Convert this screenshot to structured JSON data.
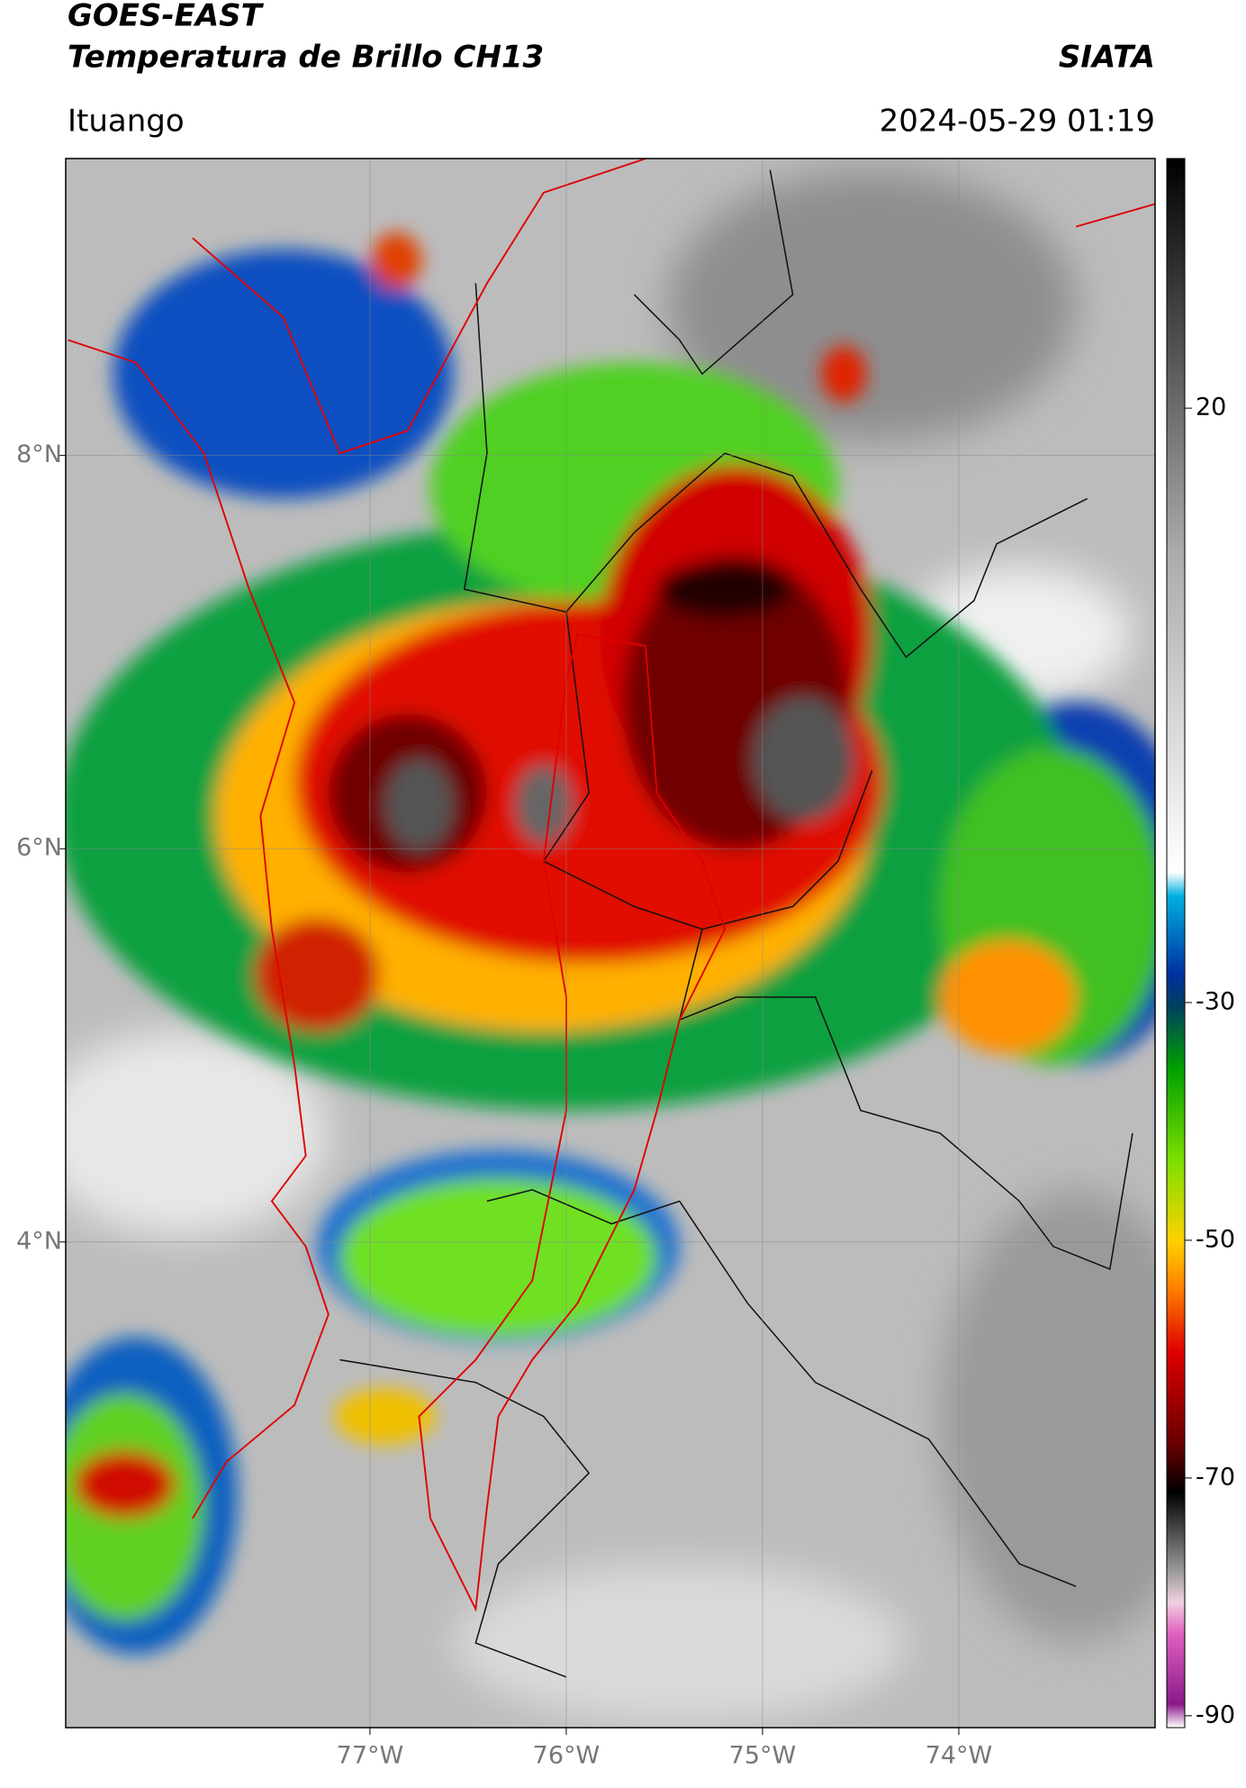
{
  "header": {
    "title": "GOES-EAST",
    "subtitle": "Temperatura de Brillo CH13",
    "source": "SIATA",
    "location": "Ituango",
    "datetime": "2024-05-29 01:19"
  },
  "map": {
    "xlim": [
      -78.55,
      -73.0
    ],
    "ylim": [
      1.53,
      9.51
    ],
    "xticks": [
      {
        "value": -77,
        "label": "77°W"
      },
      {
        "value": -76,
        "label": "76°W"
      },
      {
        "value": -75,
        "label": "75°W"
      },
      {
        "value": -74,
        "label": "74°W"
      }
    ],
    "yticks": [
      {
        "value": 4,
        "label": "4°N"
      },
      {
        "value": 6,
        "label": "6°N"
      },
      {
        "value": 8,
        "label": "8°N"
      }
    ]
  },
  "colorbar": {
    "lim": [
      -91,
      41
    ],
    "ticks": [
      -90,
      -70,
      -50,
      -30,
      20
    ]
  }
}
